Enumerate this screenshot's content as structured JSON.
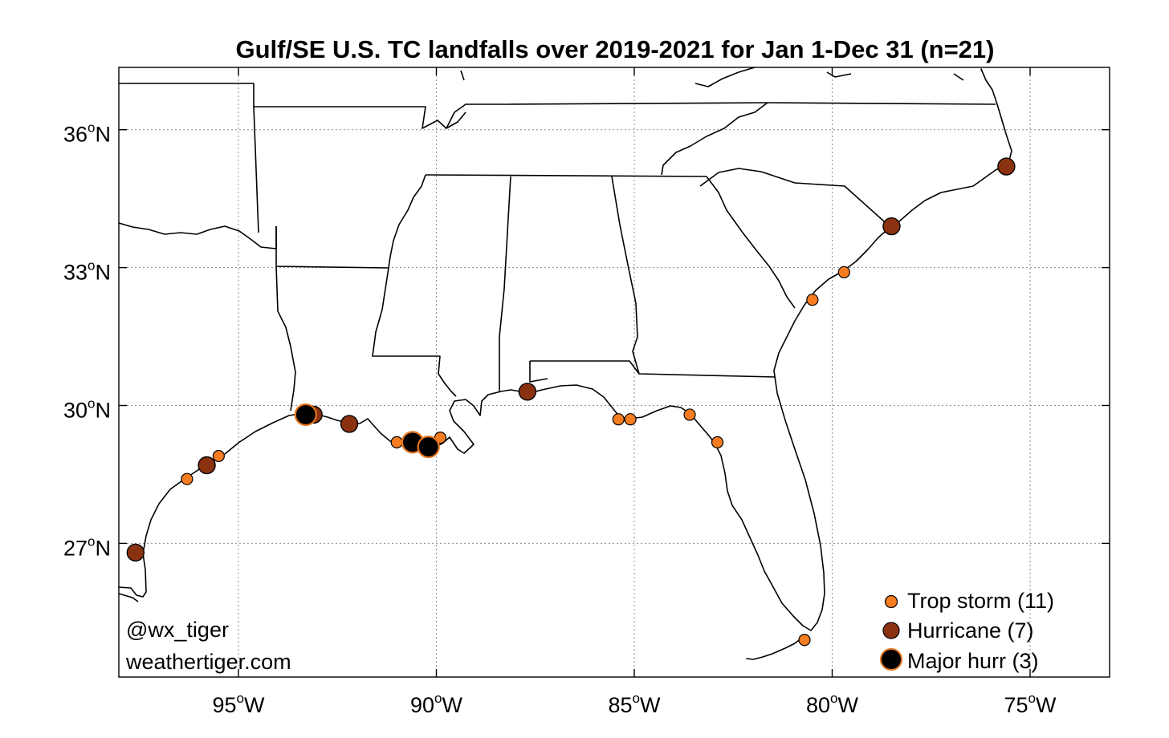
{
  "title": "Gulf/SE U.S. TC landfalls over 2019-2021 for Jan 1-Dec 31 (n=21)",
  "axes": {
    "lat_ticks": [
      {
        "value": 36,
        "num": "36",
        "deg": "o",
        "dir": "N"
      },
      {
        "value": 33,
        "num": "33",
        "deg": "o",
        "dir": "N"
      },
      {
        "value": 30,
        "num": "30",
        "deg": "o",
        "dir": "N"
      },
      {
        "value": 27,
        "num": "27",
        "deg": "o",
        "dir": "N"
      }
    ],
    "lon_ticks": [
      {
        "value": -95,
        "num": "95",
        "deg": "o",
        "dir": "W"
      },
      {
        "value": -90,
        "num": "90",
        "deg": "o",
        "dir": "W"
      },
      {
        "value": -85,
        "num": "85",
        "deg": "o",
        "dir": "W"
      },
      {
        "value": -80,
        "num": "80",
        "deg": "o",
        "dir": "W"
      },
      {
        "value": -75,
        "num": "75",
        "deg": "o",
        "dir": "W"
      }
    ],
    "lon_range": [
      -98.8,
      -73.6
    ],
    "lat_range": [
      24.0,
      37.0
    ],
    "grid": true
  },
  "credits": {
    "handle": "@wx_tiger",
    "site": "weathertiger.com"
  },
  "legend": {
    "placement": "bottom-right",
    "entries": [
      {
        "label": "Trop storm (11)",
        "category": "tropical_storm"
      },
      {
        "label": "Hurricane (7)",
        "category": "hurricane"
      },
      {
        "label": "Major hurr (3)",
        "category": "major_hurricane"
      }
    ]
  },
  "styles": {
    "tropical_storm": {
      "fill": "#f57c20",
      "stroke": "#000000"
    },
    "hurricane": {
      "fill": "#8a3210",
      "stroke": "#000000"
    },
    "major_hurricane": {
      "fill": "#000000",
      "stroke": "#e8741a"
    }
  },
  "landfalls": [
    {
      "lon": -97.6,
      "lat": 26.8,
      "category": "hurricane"
    },
    {
      "lon": -96.3,
      "lat": 28.4,
      "category": "tropical_storm"
    },
    {
      "lon": -95.8,
      "lat": 28.7,
      "category": "hurricane"
    },
    {
      "lon": -95.5,
      "lat": 28.9,
      "category": "tropical_storm"
    },
    {
      "lon": -93.3,
      "lat": 29.8,
      "category": "major_hurricane"
    },
    {
      "lon": -93.1,
      "lat": 29.8,
      "category": "hurricane"
    },
    {
      "lon": -92.2,
      "lat": 29.6,
      "category": "hurricane"
    },
    {
      "lon": -91.0,
      "lat": 29.2,
      "category": "tropical_storm"
    },
    {
      "lon": -90.6,
      "lat": 29.2,
      "category": "major_hurricane"
    },
    {
      "lon": -90.2,
      "lat": 29.1,
      "category": "major_hurricane"
    },
    {
      "lon": -89.9,
      "lat": 29.3,
      "category": "tropical_storm"
    },
    {
      "lon": -87.7,
      "lat": 30.3,
      "category": "hurricane"
    },
    {
      "lon": -85.4,
      "lat": 29.7,
      "category": "tropical_storm"
    },
    {
      "lon": -85.1,
      "lat": 29.7,
      "category": "tropical_storm"
    },
    {
      "lon": -83.6,
      "lat": 29.8,
      "category": "tropical_storm"
    },
    {
      "lon": -82.9,
      "lat": 29.2,
      "category": "tropical_storm"
    },
    {
      "lon": -80.7,
      "lat": 24.9,
      "category": "tropical_storm"
    },
    {
      "lon": -80.5,
      "lat": 32.3,
      "category": "tropical_storm"
    },
    {
      "lon": -79.7,
      "lat": 32.9,
      "category": "tropical_storm"
    },
    {
      "lon": -78.5,
      "lat": 33.9,
      "category": "hurricane"
    },
    {
      "lon": -75.6,
      "lat": 35.2,
      "category": "hurricane"
    }
  ]
}
